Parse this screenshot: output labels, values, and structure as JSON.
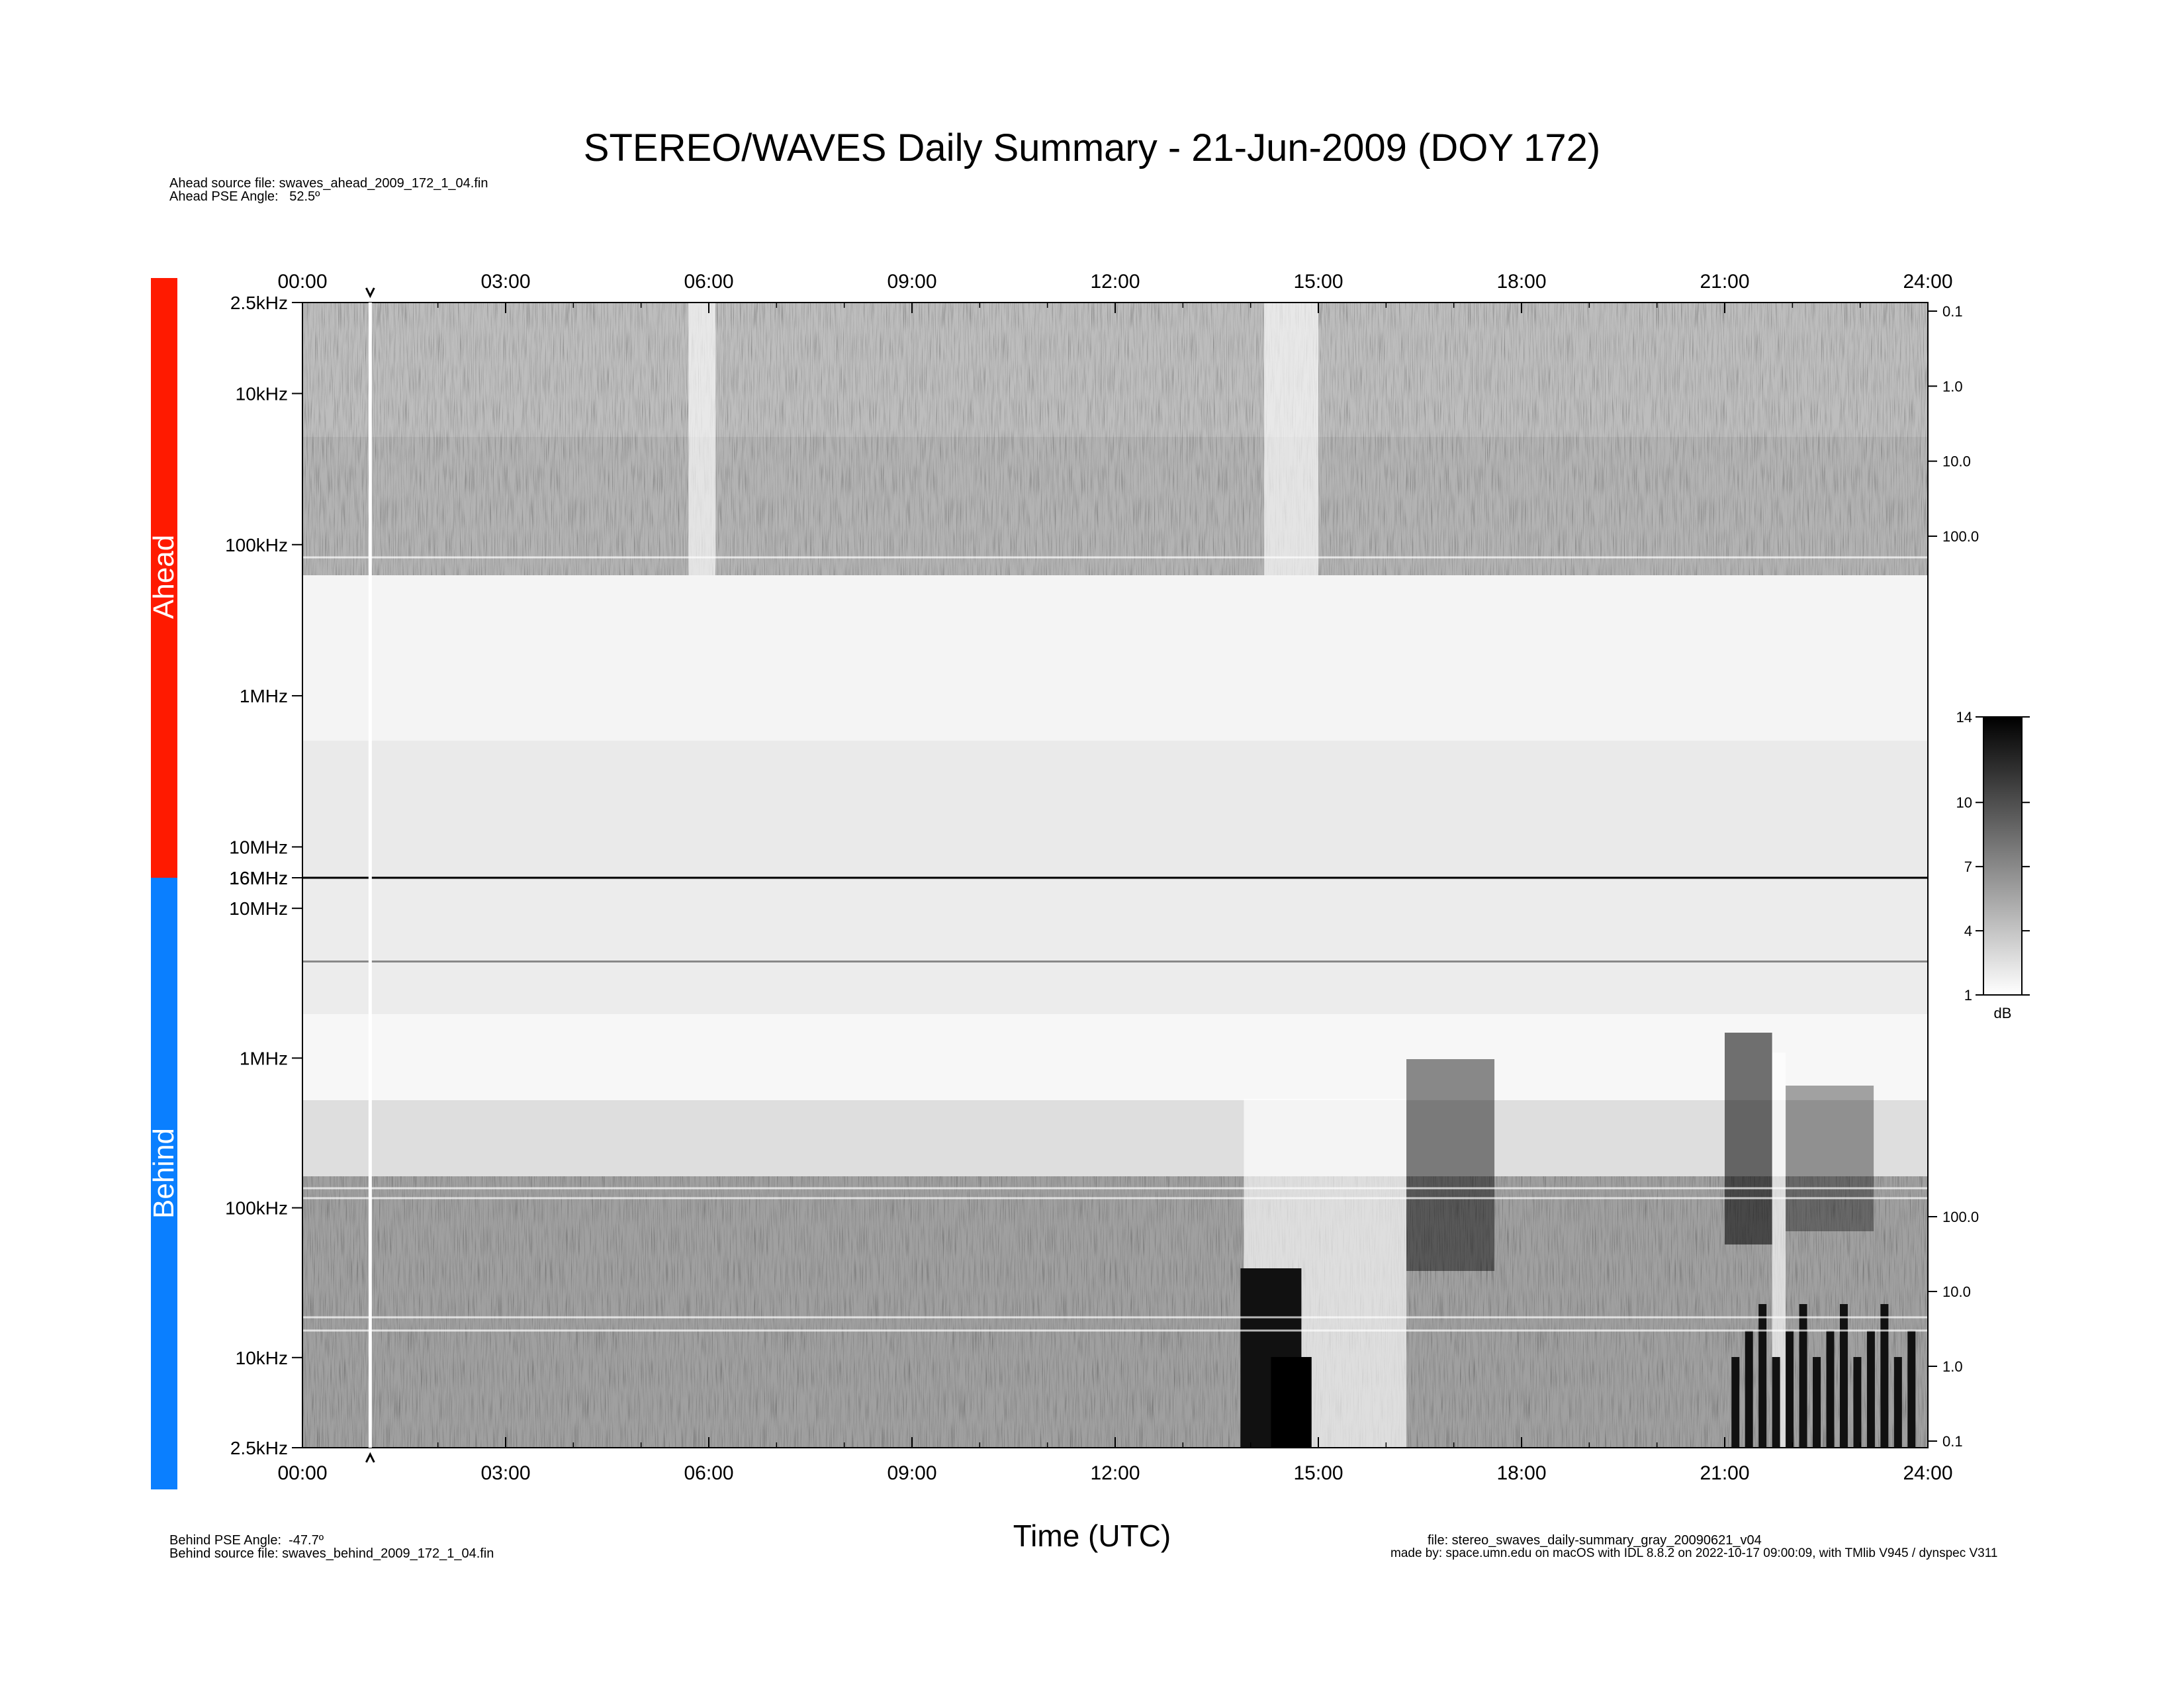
{
  "title": "STEREO/WAVES Daily Summary - 21-Jun-2009 (DOY 172)",
  "header_info": {
    "ahead_source_file": "Ahead source file: swaves_ahead_2009_172_1_04.fin",
    "ahead_pse_angle": "Ahead PSE Angle:   52.5º"
  },
  "footer_info": {
    "behind_pse_angle": "Behind PSE Angle:  -47.7º",
    "behind_source_file": "Behind source file: swaves_behind_2009_172_1_04.fin",
    "file_name": "file: stereo_swaves_daily-summary_gray_20090621_v04",
    "made_by": "made by: space.umn.edu on macOS with IDL 8.8.2 on 2022-10-17 09:00:09, with TMlib V945 / dynspec V311"
  },
  "colors": {
    "ahead_bar": "#ff1a00",
    "behind_bar": "#0a7fff"
  },
  "colorbar": {
    "ticks": [
      "14",
      "10",
      "7",
      "4",
      "1"
    ],
    "unit": "dB",
    "range": [
      1,
      14
    ]
  },
  "chart_data": {
    "type": "heatmap",
    "xlabel": "Time (UTC)",
    "x_ticks": [
      "00:00",
      "03:00",
      "06:00",
      "09:00",
      "12:00",
      "15:00",
      "18:00",
      "21:00",
      "24:00"
    ],
    "xlim": [
      "00:00",
      "24:00"
    ],
    "panels": [
      {
        "name": "Ahead",
        "y_ticks": [
          "2.5kHz",
          "10kHz",
          "100kHz",
          "1MHz",
          "10MHz",
          "16MHz"
        ],
        "y_scale": "log",
        "right_ticks": [
          "0.1",
          "1.0",
          "10.0",
          "100.0"
        ]
      },
      {
        "name": "Behind",
        "y_ticks": [
          "16MHz",
          "10MHz",
          "1MHz",
          "100kHz",
          "10kHz",
          "2.5kHz"
        ],
        "y_scale": "log",
        "right_ticks": [
          "100.0",
          "10.0",
          "1.0",
          "0.1"
        ]
      }
    ],
    "colormap": "gray",
    "marker_time": "01:00"
  }
}
